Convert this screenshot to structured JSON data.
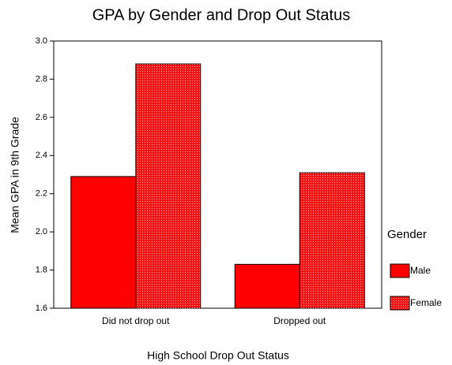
{
  "chart_data": {
    "type": "bar",
    "title": "GPA by Gender and Drop Out Status",
    "x_label": "High School Drop Out Status",
    "y_label": "Mean GPA in 9th Grade",
    "categories": [
      "Did not drop out",
      "Dropped out"
    ],
    "series": [
      {
        "name": "Male",
        "color": "#ff0000",
        "values": [
          2.29,
          1.83
        ]
      },
      {
        "name": "Female",
        "color": "#f41414",
        "values": [
          2.88,
          2.31
        ]
      }
    ],
    "legend_title": "Gender",
    "legend": "right",
    "ylim": [
      1.6,
      3.0
    ],
    "yticks": [
      1.6,
      1.8,
      {
        "value": 2.0,
        "label": "2.0"
      },
      2.2,
      2.4,
      2.6,
      2.8,
      {
        "value": 3.0,
        "label": "3.0"
      }
    ]
  }
}
